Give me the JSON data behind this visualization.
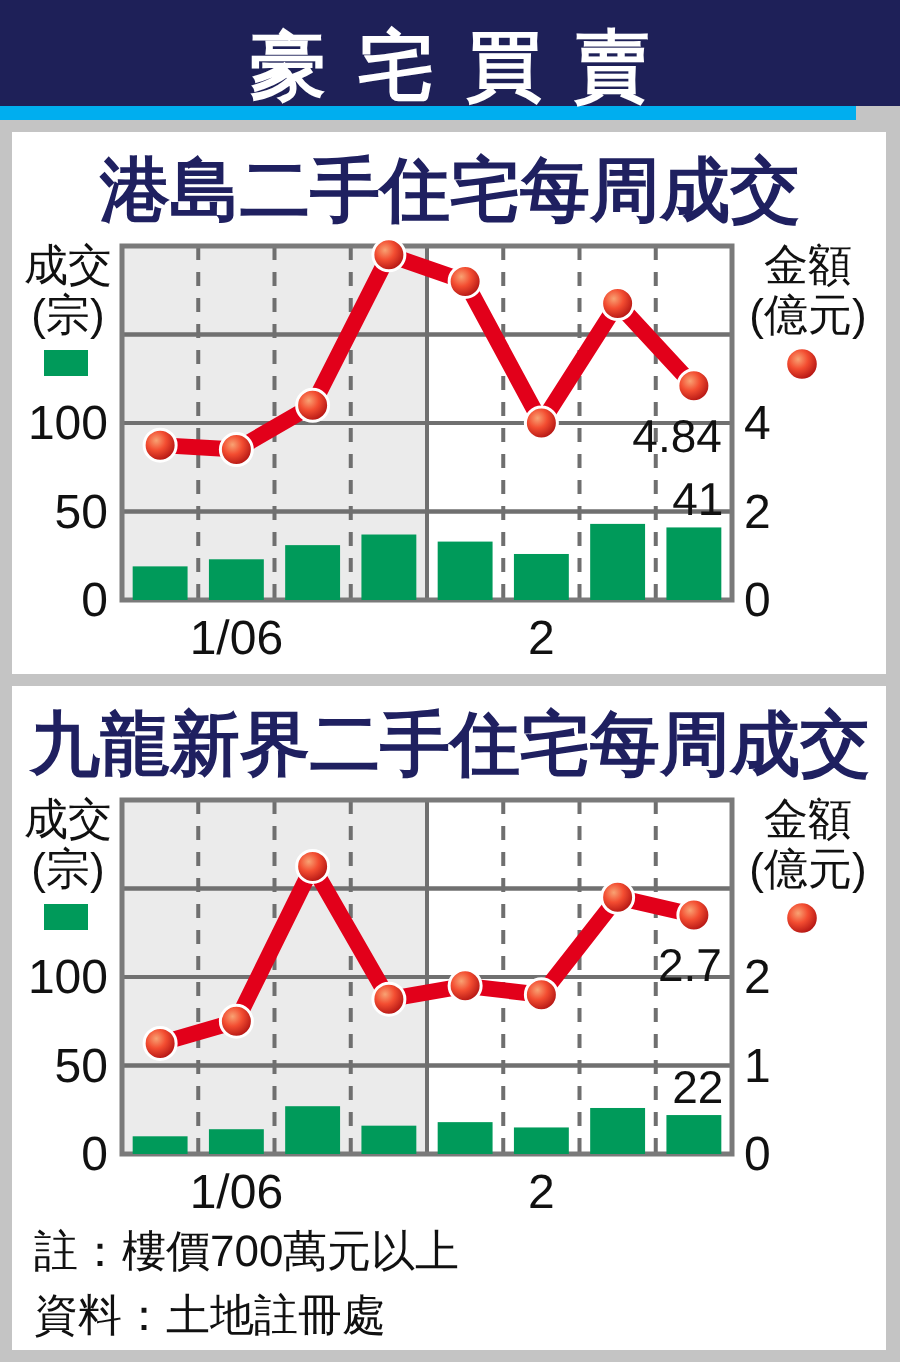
{
  "chart_data": [
    {
      "type": "bar",
      "title": "豪宅買賣",
      "subtitle": "港島二手住宅每周成交",
      "ylabel": "成交(宗)",
      "y2label": "金額(億元)",
      "categories": [
        null,
        "1/06",
        null,
        null,
        null,
        "2",
        null,
        null
      ],
      "ylim": [
        0,
        200
      ],
      "yticks": [
        0,
        50,
        100,
        {
          "value": 150,
          "label": null
        }
      ],
      "y2lim": [
        0,
        8
      ],
      "y2ticks": [
        0,
        2,
        4,
        {
          "value": 6,
          "label": null
        }
      ],
      "grid": true,
      "series": [
        {
          "color": "#009a5a",
          "values": [
            19,
            23,
            31,
            37,
            33,
            26,
            43,
            41
          ],
          "value_labels": [
            null,
            null,
            null,
            null,
            null,
            null,
            null,
            "41"
          ]
        },
        {
          "type": "line",
          "axis": "y2",
          "color": "#e2001a",
          "marker": "circle",
          "values": [
            3.5,
            3.4,
            4.4,
            7.8,
            7.2,
            4.0,
            6.7,
            4.84
          ],
          "value_labels": [
            null,
            null,
            null,
            null,
            null,
            null,
            null,
            "4.84"
          ]
        }
      ]
    },
    {
      "type": "bar",
      "title": "九龍新界二手住宅每周成交",
      "ylabel": "成交(宗)",
      "y2label": "金額(億元)",
      "categories": [
        null,
        "1/06",
        null,
        null,
        null,
        "2",
        null,
        null
      ],
      "ylim": [
        0,
        200
      ],
      "yticks": [
        0,
        50,
        100,
        {
          "value": 150,
          "label": null
        }
      ],
      "y2lim": [
        0,
        4
      ],
      "y2ticks": [
        0,
        1,
        2,
        {
          "value": 3,
          "label": null
        }
      ],
      "grid": true,
      "series": [
        {
          "color": "#009a5a",
          "values": [
            10,
            14,
            27,
            16,
            18,
            15,
            26,
            22
          ],
          "value_labels": [
            null,
            null,
            null,
            null,
            null,
            null,
            null,
            "22"
          ]
        },
        {
          "type": "line",
          "axis": "y2",
          "color": "#e2001a",
          "marker": "circle",
          "values": [
            1.25,
            1.5,
            3.25,
            1.75,
            1.9,
            1.8,
            2.9,
            2.7
          ],
          "value_labels": [
            null,
            null,
            null,
            null,
            null,
            null,
            null,
            "2.7"
          ]
        }
      ],
      "annotations": [
        "註：樓價700萬元以上",
        "資料：土地註冊處"
      ]
    }
  ]
}
